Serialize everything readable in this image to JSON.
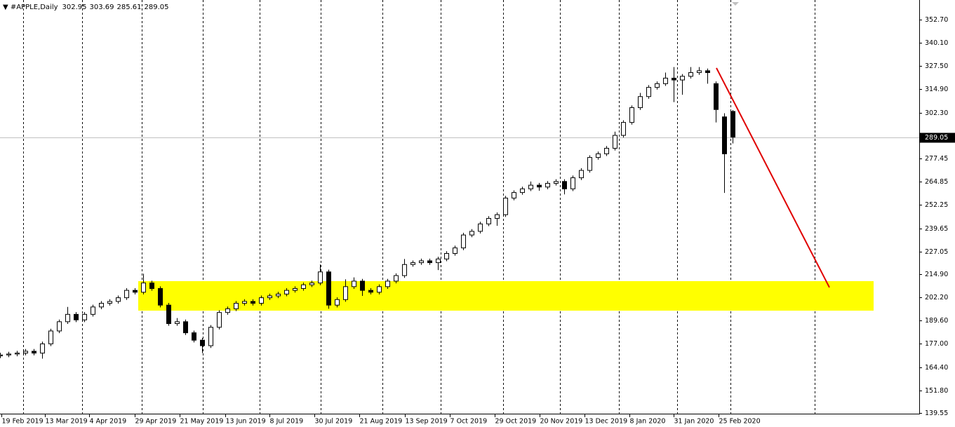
{
  "chart_data": {
    "type": "candlestick",
    "symbol": "#APPLE,Daily",
    "x": [
      0,
      3,
      6,
      9,
      12,
      15,
      18,
      21,
      24,
      27,
      30,
      33,
      36,
      39,
      42,
      45,
      48,
      51,
      54,
      57,
      60,
      63,
      66,
      69,
      72,
      75,
      78,
      81,
      84,
      87,
      90,
      93,
      96,
      99,
      102,
      105,
      108,
      111,
      114,
      117,
      120,
      123,
      126,
      129,
      132,
      135,
      138,
      141,
      144,
      147,
      150,
      153,
      156,
      159,
      162,
      165,
      168,
      171,
      174,
      177,
      180,
      183,
      186,
      189,
      192,
      195,
      198,
      201,
      204,
      207,
      210,
      213,
      216,
      219,
      222,
      225,
      228,
      231,
      234,
      237,
      240,
      243,
      246,
      249,
      252,
      255,
      258,
      261
    ],
    "open": [
      170.5,
      171,
      171.5,
      172,
      173,
      172,
      177,
      184,
      189,
      193,
      190,
      193,
      197,
      199,
      200,
      202,
      206,
      205,
      210,
      207,
      198,
      188,
      189,
      183,
      179,
      176,
      186,
      194,
      196,
      199,
      200,
      199,
      202,
      203,
      204,
      206,
      207,
      209,
      210,
      216,
      198,
      201,
      208,
      211,
      206,
      205,
      208,
      211,
      214,
      220,
      221,
      222,
      221,
      223,
      226,
      229,
      236,
      238,
      242,
      245,
      247,
      256,
      259,
      261,
      263,
      262,
      264,
      265,
      261,
      267,
      271,
      278,
      280,
      283,
      290,
      297,
      305,
      311,
      316,
      318,
      321,
      320,
      322,
      324,
      325,
      318,
      300,
      302.95
    ],
    "high": [
      172.2,
      172.7,
      173.2,
      174.2,
      174.2,
      178.2,
      185.2,
      190.2,
      197,
      194.2,
      194.2,
      198.2,
      200.2,
      201.2,
      203.2,
      207.2,
      207.2,
      215,
      211.2,
      208.2,
      199.2,
      191,
      190.2,
      184.2,
      180.2,
      187.2,
      195.2,
      197.2,
      200.2,
      201.2,
      201.2,
      203.2,
      204.2,
      205.2,
      207.2,
      208.2,
      210.2,
      211.2,
      220,
      217.2,
      202.2,
      212,
      213,
      212.2,
      207.2,
      209.2,
      212.2,
      215.2,
      223,
      222.2,
      223.2,
      223.2,
      224.2,
      227.2,
      230.2,
      237.2,
      239.2,
      243.2,
      246.2,
      248.2,
      257.2,
      260.2,
      262.2,
      265,
      264.2,
      265.2,
      266.2,
      266.2,
      268.2,
      272.2,
      279.2,
      281.2,
      284.2,
      292,
      298.2,
      306.2,
      313,
      317.2,
      319.2,
      324,
      327,
      323.2,
      327,
      327,
      326.2,
      319.2,
      302,
      303.69
    ],
    "low": [
      169.3,
      169.8,
      170.3,
      170.8,
      170.8,
      169,
      175.8,
      182.8,
      187.8,
      188.8,
      188.8,
      191.8,
      195.8,
      197.8,
      198.8,
      200.8,
      203.8,
      203.8,
      205.8,
      196.8,
      186.8,
      186.8,
      181.8,
      177.8,
      172,
      174.8,
      184.8,
      192.8,
      194.8,
      197.8,
      197.8,
      197.8,
      200.8,
      201.8,
      202.8,
      204.8,
      205.8,
      207.8,
      208.8,
      196,
      196.8,
      199.8,
      206.8,
      203,
      203.8,
      203.8,
      206.8,
      209.8,
      212.8,
      218.8,
      219.8,
      219.8,
      217,
      221.8,
      224.8,
      227.8,
      234.8,
      236.8,
      240.8,
      241,
      245.8,
      254.8,
      257.8,
      259.8,
      260,
      260.8,
      262.8,
      258,
      259.8,
      265.8,
      269.8,
      276.8,
      278.8,
      281.8,
      288.8,
      295.8,
      303.8,
      309.8,
      314.8,
      316.8,
      308,
      312,
      320.8,
      322.8,
      318,
      297,
      258.8,
      285.61
    ],
    "close": [
      171,
      171.5,
      172,
      173,
      172,
      177,
      184,
      189,
      193,
      190,
      193,
      197,
      199,
      200,
      202,
      206,
      205,
      210,
      207,
      198,
      188,
      189,
      183,
      179,
      176,
      186,
      194,
      196,
      199,
      200,
      199,
      202,
      203,
      204,
      206,
      207,
      209,
      210,
      216,
      198,
      201,
      208,
      211,
      206,
      205,
      208,
      211,
      214,
      220,
      221,
      222,
      221,
      223,
      226,
      229,
      236,
      238,
      242,
      245,
      247,
      256,
      259,
      261,
      263,
      262,
      264,
      265,
      261,
      267,
      271,
      278,
      280,
      283,
      290,
      297,
      305,
      311,
      316,
      318,
      321,
      320,
      322,
      324,
      325,
      324,
      304,
      280,
      289.05
    ],
    "xlim": [
      0,
      327.5
    ],
    "ylim": [
      139.17,
      363.34
    ],
    "yticks": [
      {
        "value": 352.7,
        "label": "352.70"
      },
      {
        "value": 340.1,
        "label": "340.10"
      },
      {
        "value": 327.5,
        "label": "327.50"
      },
      {
        "value": 314.9,
        "label": "314.90"
      },
      {
        "value": 302.3,
        "label": "302.30"
      },
      {
        "value": 277.45,
        "label": "277.45"
      },
      {
        "value": 264.85,
        "label": "264.85"
      },
      {
        "value": 252.25,
        "label": "252.25"
      },
      {
        "value": 239.65,
        "label": "239.65"
      },
      {
        "value": 227.05,
        "label": "227.05"
      },
      {
        "value": 214.9,
        "label": "214.90"
      },
      {
        "value": 202.2,
        "label": "202.20"
      },
      {
        "value": 189.6,
        "label": "189.60"
      },
      {
        "value": 177,
        "label": "177.00"
      },
      {
        "value": 164.4,
        "label": "164.40"
      },
      {
        "value": 151.8,
        "label": "151.80"
      },
      {
        "value": 139.55,
        "label": "139.55"
      }
    ],
    "xticks": [
      {
        "value": 0.5,
        "label": "19 Feb 2019"
      },
      {
        "value": 16,
        "label": "13 Mar 2019"
      },
      {
        "value": 31.75,
        "label": "4 Apr 2019"
      },
      {
        "value": 48,
        "label": "29 Apr 2019"
      },
      {
        "value": 64,
        "label": "21 May 2019"
      },
      {
        "value": 80.25,
        "label": "13 Jun 2019"
      },
      {
        "value": 96,
        "label": "8 Jul 2019"
      },
      {
        "value": 112,
        "label": "30 Jul 2019"
      },
      {
        "value": 128,
        "label": "21 Aug 2019"
      },
      {
        "value": 144.25,
        "label": "13 Sep 2019"
      },
      {
        "value": 160.25,
        "label": "7 Oct 2019"
      },
      {
        "value": 176.25,
        "label": "29 Oct 2019"
      },
      {
        "value": 192.25,
        "label": "20 Nov 2019"
      },
      {
        "value": 208.25,
        "label": "13 Dec 2019"
      },
      {
        "value": 224.25,
        "label": "8 Jan 2020"
      },
      {
        "value": 240,
        "label": "31 Jan 2020"
      },
      {
        "value": 256,
        "label": "25 Feb 2020"
      }
    ],
    "separators": [
      8.25,
      29.25,
      50.5,
      72.25,
      92.5,
      114.25,
      136.25,
      157,
      179.25,
      199.5,
      220.5,
      241.25,
      260.25,
      290.25
    ],
    "grid": true,
    "up_color": "#ffffff",
    "down_color": "#000000",
    "zone": {
      "x": [
        49.25,
        311.25
      ],
      "y": [
        195,
        211
      ],
      "color": "#ffff00"
    },
    "trendline": {
      "x": [
        255.25,
        295.5
      ],
      "y": [
        326.5,
        207.6
      ],
      "color": "#e00000"
    }
  }
}
